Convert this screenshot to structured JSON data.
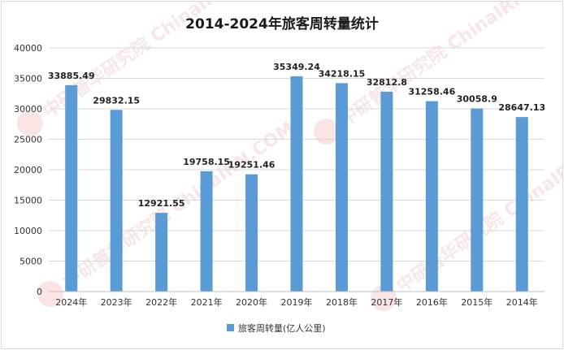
{
  "chart_data": {
    "type": "bar",
    "title": "2014-2024年旅客周转量统计",
    "categories": [
      "2024年",
      "2023年",
      "2022年",
      "2021年",
      "2020年",
      "2019年",
      "2018年",
      "2017年",
      "2016年",
      "2015年",
      "2014年"
    ],
    "series": [
      {
        "name": "旅客周转量(亿人公里)",
        "values": [
          33885.49,
          29832.15,
          12921.55,
          19758.15,
          19251.46,
          35349.24,
          34218.15,
          32812.8,
          31258.46,
          30058.9,
          28647.13
        ]
      }
    ],
    "labels": [
      "33885.49",
      "29832.15",
      "12921.55",
      "19758.15",
      "19251.46",
      "35349.24",
      "34218.15",
      "32812.8",
      "31258.46",
      "30058.9",
      "28647.13"
    ],
    "yticks": [
      "0",
      "5000",
      "10000",
      "15000",
      "20000",
      "25000",
      "30000",
      "35000",
      "40000"
    ],
    "ylim": [
      0,
      40000
    ],
    "xlabel": "",
    "ylabel": "",
    "grid": true,
    "legend": "bottom",
    "bar_color": "#5b9bd5",
    "watermark": "中研普华研究院 ChinaIRN.COM"
  }
}
